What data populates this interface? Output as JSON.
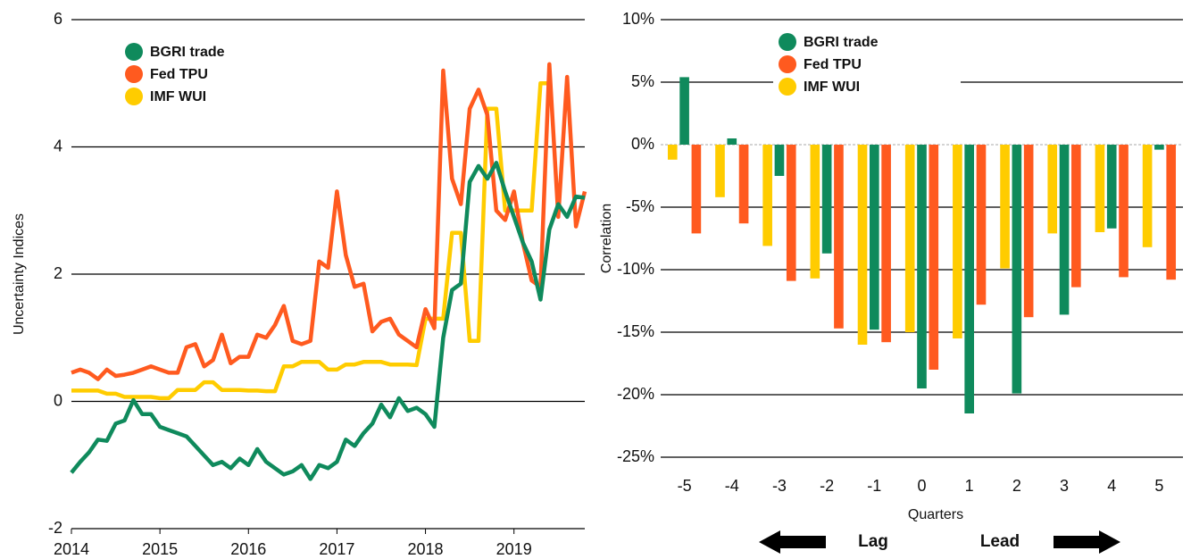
{
  "chart_data": [
    {
      "type": "line",
      "y_label": "Uncertainty Indices",
      "x": [
        2014.0,
        2014.1,
        2014.2,
        2014.3,
        2014.4,
        2014.5,
        2014.6,
        2014.7,
        2014.8,
        2014.9,
        2015.0,
        2015.1,
        2015.2,
        2015.3,
        2015.4,
        2015.5,
        2015.6,
        2015.7,
        2015.8,
        2015.9,
        2016.0,
        2016.1,
        2016.2,
        2016.3,
        2016.4,
        2016.5,
        2016.6,
        2016.7,
        2016.8,
        2016.9,
        2017.0,
        2017.1,
        2017.2,
        2017.3,
        2017.4,
        2017.5,
        2017.6,
        2017.7,
        2017.8,
        2017.9,
        2018.0,
        2018.1,
        2018.2,
        2018.3,
        2018.4,
        2018.5,
        2018.6,
        2018.7,
        2018.8,
        2018.9,
        2019.0,
        2019.1,
        2019.2,
        2019.3,
        2019.4,
        2019.5,
        2019.6,
        2019.7,
        2019.8
      ],
      "series": [
        {
          "name": "BGRI trade",
          "color": "#0f8a5c",
          "values": [
            -1.12,
            -0.95,
            -0.8,
            -0.6,
            -0.62,
            -0.35,
            -0.3,
            0.02,
            -0.2,
            -0.2,
            -0.4,
            -0.45,
            -0.5,
            -0.55,
            -0.7,
            -0.85,
            -1.0,
            -0.95,
            -1.05,
            -0.9,
            -1.0,
            -0.75,
            -0.95,
            -1.05,
            -1.15,
            -1.1,
            -1.0,
            -1.22,
            -1.0,
            -1.05,
            -0.95,
            -0.6,
            -0.7,
            -0.5,
            -0.35,
            -0.05,
            -0.25,
            0.05,
            -0.15,
            -0.1,
            -0.2,
            -0.4,
            1.0,
            1.75,
            1.85,
            3.45,
            3.7,
            3.5,
            3.75,
            3.3,
            2.9,
            2.5,
            2.2,
            1.6,
            2.7,
            3.1,
            2.9,
            3.22,
            3.2
          ]
        },
        {
          "name": "Fed TPU",
          "color": "#ff5a1f",
          "values": [
            0.45,
            0.5,
            0.45,
            0.35,
            0.5,
            0.4,
            0.42,
            0.45,
            0.5,
            0.55,
            0.5,
            0.45,
            0.45,
            0.85,
            0.9,
            0.55,
            0.65,
            1.05,
            0.6,
            0.7,
            0.7,
            1.05,
            1.0,
            1.2,
            1.5,
            0.95,
            0.9,
            0.95,
            2.2,
            2.1,
            3.3,
            2.3,
            1.8,
            1.85,
            1.1,
            1.25,
            1.3,
            1.05,
            0.95,
            0.85,
            1.45,
            1.15,
            5.2,
            3.5,
            3.1,
            4.6,
            4.9,
            4.5,
            3.0,
            2.85,
            3.3,
            2.5,
            1.9,
            1.8,
            5.3,
            2.9,
            5.1,
            2.75,
            3.3
          ]
        },
        {
          "name": "IMF WUI",
          "color": "#ffcc00",
          "values": [
            0.17,
            0.17,
            0.17,
            0.17,
            0.12,
            0.12,
            0.07,
            0.07,
            0.07,
            0.07,
            0.05,
            0.05,
            0.18,
            0.18,
            0.18,
            0.3,
            0.3,
            0.18,
            0.18,
            0.18,
            0.17,
            0.17,
            0.16,
            0.16,
            0.55,
            0.55,
            0.62,
            0.62,
            0.62,
            0.5,
            0.5,
            0.58,
            0.58,
            0.62,
            0.62,
            0.62,
            0.58,
            0.58,
            0.58,
            0.57,
            1.3,
            1.3,
            1.3,
            2.65,
            2.65,
            0.95,
            0.95,
            4.6,
            4.6,
            3.0,
            3.0,
            3.0,
            3.0,
            5.0,
            5.0,
            null,
            null,
            null,
            null
          ]
        }
      ],
      "xlim": [
        2014,
        2019.8
      ],
      "xticks": [
        2014,
        2015,
        2016,
        2017,
        2018,
        2019
      ],
      "ylim": [
        -2,
        6
      ],
      "yticks": [
        -2,
        0,
        2,
        4,
        6
      ],
      "grid": true
    },
    {
      "type": "bar",
      "y_label": "Correlation",
      "x_label": "Quarters",
      "categories": [
        "-5",
        "-4",
        "-3",
        "-2",
        "-1",
        "0",
        "1",
        "2",
        "3",
        "4",
        "5"
      ],
      "series": [
        {
          "name": "BGRI trade",
          "color": "#0f8a5c",
          "values": [
            5.4,
            0.5,
            -2.5,
            -8.7,
            -14.8,
            -19.5,
            -21.5,
            -19.9,
            -13.6,
            -6.7,
            -0.4
          ]
        },
        {
          "name": "Fed TPU",
          "color": "#ff5a1f",
          "values": [
            -7.1,
            -6.3,
            -10.9,
            -14.7,
            -15.8,
            -18.0,
            -12.8,
            -13.8,
            -11.4,
            -10.6,
            -10.8
          ]
        },
        {
          "name": "IMF WUI",
          "color": "#ffcc00",
          "values": [
            -1.2,
            -4.2,
            -8.1,
            -10.7,
            -16.0,
            -15.0,
            -15.5,
            -9.9,
            -7.1,
            -7.0,
            -8.2
          ]
        }
      ],
      "ylim": [
        -25,
        10
      ],
      "yticks": [
        {
          "value": -25,
          "label": "-25%"
        },
        {
          "value": -20,
          "label": "-20%"
        },
        {
          "value": -15,
          "label": "-15%"
        },
        {
          "value": -10,
          "label": "-10%"
        },
        {
          "value": -5,
          "label": "-5%"
        },
        {
          "value": 0,
          "label": "0%"
        },
        {
          "value": 5,
          "label": "5%"
        },
        {
          "value": 10,
          "label": "10%"
        }
      ],
      "grid": true,
      "annotations": [
        "Lag",
        "Lead"
      ]
    }
  ]
}
